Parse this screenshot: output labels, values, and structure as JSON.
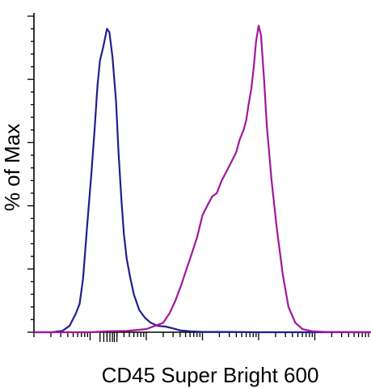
{
  "chart_data": {
    "type": "line",
    "title": "",
    "xlabel": "CD45 Super Bright 600",
    "ylabel": "% of Max",
    "x_scale": "log",
    "xlim": [
      1,
      1000000
    ],
    "ylim": [
      0,
      100
    ],
    "grid": false,
    "legend": "none",
    "y_ticks": [
      0,
      20,
      40,
      60,
      80,
      100
    ],
    "x_major_ticks": [
      10,
      100,
      1000,
      10000,
      100000
    ],
    "series": [
      {
        "color": "#1f1f8f",
        "x": [
          1,
          2.1,
          3.2,
          4.3,
          5.6,
          6.5,
          7.5,
          8.8,
          10.5,
          12,
          13.5,
          15,
          17,
          20,
          22,
          25,
          29,
          32,
          36,
          40,
          45,
          52,
          60,
          75,
          95,
          120,
          160,
          220,
          300,
          400,
          600,
          1000,
          3000,
          10000,
          100000,
          1000000
        ],
        "y": [
          0,
          0,
          0.4,
          2,
          6,
          9,
          17,
          33,
          50,
          64,
          78,
          86,
          90,
          96,
          95,
          87,
          73,
          57,
          42,
          31,
          23,
          17,
          12,
          7,
          4.5,
          3,
          2,
          1.8,
          1.2,
          0.6,
          0.3,
          0.1,
          0.1,
          0,
          0,
          0
        ]
      },
      {
        "color": "#a0169f",
        "x": [
          1,
          10,
          20,
          45,
          100,
          200,
          260,
          330,
          420,
          520,
          620,
          800,
          1000,
          1300,
          1500,
          1800,
          2200,
          2700,
          3300,
          4000,
          4600,
          5400,
          6000,
          6600,
          7400,
          8200,
          9000,
          10000,
          11000,
          12500,
          14000,
          17000,
          21000,
          27000,
          34000,
          45000,
          60000,
          90000,
          150000,
          1000000
        ],
        "y": [
          0,
          0,
          0.3,
          0.4,
          1,
          3,
          6,
          10,
          15,
          20,
          24,
          30,
          37,
          41,
          43,
          44,
          48,
          51,
          54,
          57,
          61,
          64,
          67,
          72,
          77,
          84,
          92,
          97,
          94,
          80,
          65,
          48,
          33,
          18,
          8,
          3,
          1,
          0.3,
          0.1,
          0
        ]
      }
    ]
  }
}
